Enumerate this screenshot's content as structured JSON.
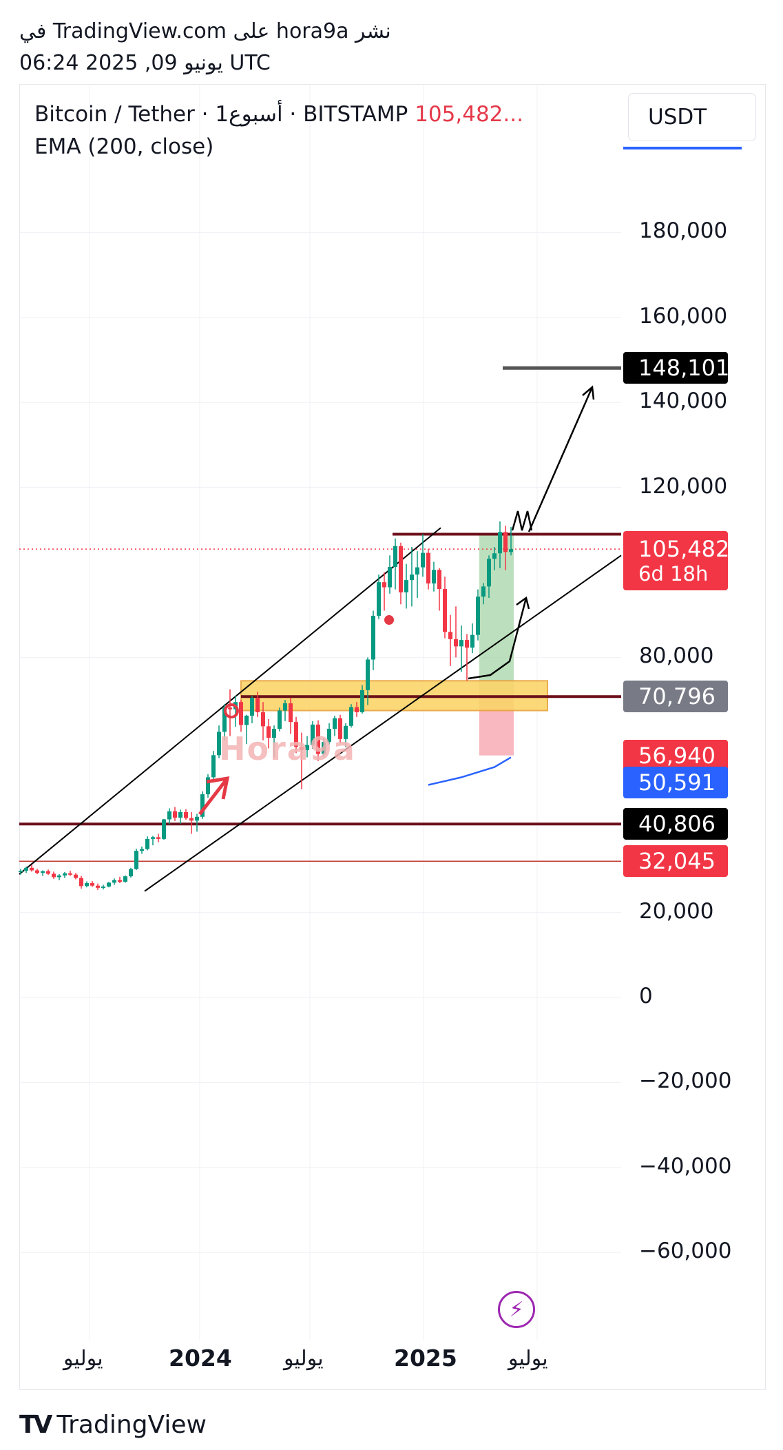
{
  "header": {
    "line1": "في TradingView.com على hora9a نشر",
    "line2": "06:24 2025 ,09 يونيو UTC"
  },
  "legend": {
    "symbol": "Bitcoin / Tether · 1أسبوع · BITSTAMP",
    "price": "105,482...",
    "indicator": "EMA (200, close)"
  },
  "currency_button": "USDT",
  "watermark": "Hora9a",
  "footer": {
    "logo": "TV",
    "brand": "TradingView"
  },
  "colors": {
    "up": "#089981",
    "down": "#f23645",
    "zone": "#fbd46a",
    "green_box": "#a5d6a7",
    "red_box": "#f8a5b0"
  },
  "icons": {
    "flash": "lightning-bolt-icon"
  },
  "chart_data": {
    "type": "candlestick",
    "symbol": "BTCUSDT",
    "y_ticks": [
      180000,
      160000,
      140000,
      120000,
      80000,
      20000,
      0,
      -20000,
      -40000,
      -60000
    ],
    "y_tick_labels": [
      "180,000",
      "160,000",
      "140,000",
      "120,000",
      "80,000",
      "20,000",
      "0",
      "−20,000",
      "−40,000",
      "−60,000"
    ],
    "x_ticks": [
      {
        "label": "يوليو",
        "year": false
      },
      {
        "label": "2024",
        "year": true
      },
      {
        "label": "يوليو",
        "year": false
      },
      {
        "label": "2025",
        "year": true
      },
      {
        "label": "يوليو",
        "year": false
      }
    ],
    "price_tags": [
      {
        "value": 148101,
        "label": "148,101",
        "color": "#000000"
      },
      {
        "value": 105482,
        "label": "105,482",
        "sub": "6d 18h",
        "color": "#f23645"
      },
      {
        "value": 70796,
        "label": "70,796",
        "color": "#787b86"
      },
      {
        "value": 56940,
        "label": "56,940",
        "color": "#f23645"
      },
      {
        "value": 50591,
        "label": "50,591",
        "color": "#2962ff"
      },
      {
        "value": 40806,
        "label": "40,806",
        "color": "#000000"
      },
      {
        "value": 32045,
        "label": "32,045",
        "color": "#f23645"
      }
    ],
    "horizontal_levels": [
      109000,
      70796,
      40806,
      32045
    ],
    "target_level": 148101,
    "candles": [
      [
        29500,
        30200,
        28900,
        29800
      ],
      [
        29800,
        30800,
        29300,
        30500
      ],
      [
        30500,
        31200,
        29600,
        29900
      ],
      [
        29900,
        30300,
        29000,
        29300
      ],
      [
        29300,
        29900,
        28600,
        29700
      ],
      [
        29700,
        30100,
        28800,
        29100
      ],
      [
        29100,
        29600,
        27900,
        28300
      ],
      [
        28300,
        29000,
        27600,
        28700
      ],
      [
        28700,
        29500,
        28100,
        29200
      ],
      [
        29200,
        29800,
        28600,
        28900
      ],
      [
        28900,
        29300,
        27800,
        28100
      ],
      [
        28100,
        28600,
        25600,
        26200
      ],
      [
        26200,
        27300,
        25900,
        26900
      ],
      [
        26900,
        27400,
        26000,
        26300
      ],
      [
        26300,
        26800,
        25300,
        25800
      ],
      [
        25800,
        26500,
        25400,
        26100
      ],
      [
        26100,
        27200,
        25900,
        27000
      ],
      [
        27000,
        28000,
        26500,
        27600
      ],
      [
        27600,
        28400,
        26900,
        27200
      ],
      [
        27200,
        28700,
        27000,
        28500
      ],
      [
        28500,
        30500,
        28200,
        30200
      ],
      [
        30200,
        35000,
        30000,
        34500
      ],
      [
        34500,
        35500,
        33800,
        34900
      ],
      [
        34900,
        37900,
        34600,
        37300
      ],
      [
        37300,
        38000,
        35800,
        37700
      ],
      [
        37700,
        38500,
        36500,
        37300
      ],
      [
        37300,
        42000,
        37100,
        41900
      ],
      [
        41900,
        44500,
        40700,
        43800
      ],
      [
        43800,
        44800,
        41500,
        42300
      ],
      [
        42300,
        44200,
        40800,
        43600
      ],
      [
        43600,
        44300,
        41800,
        42200
      ],
      [
        42200,
        43600,
        38500,
        41600
      ],
      [
        41600,
        43200,
        39000,
        42500
      ],
      [
        42500,
        48500,
        42000,
        47800
      ],
      [
        47800,
        52500,
        47000,
        51800
      ],
      [
        51800,
        58000,
        50600,
        57000
      ],
      [
        57000,
        64000,
        56300,
        62500
      ],
      [
        62500,
        69000,
        60500,
        68200
      ],
      [
        68200,
        72500,
        61500,
        67800
      ],
      [
        67800,
        71000,
        63700,
        69500
      ],
      [
        69500,
        70000,
        62500,
        64100
      ],
      [
        64100,
        66500,
        59600,
        66300
      ],
      [
        66300,
        71000,
        64500,
        70500
      ],
      [
        70500,
        71900,
        66000,
        67100
      ],
      [
        67100,
        69500,
        60500,
        63800
      ],
      [
        63800,
        65500,
        58600,
        61100
      ],
      [
        61100,
        64000,
        56500,
        63200
      ],
      [
        63200,
        68200,
        62600,
        67500
      ],
      [
        67500,
        70000,
        65000,
        69200
      ],
      [
        69200,
        70500,
        62000,
        64800
      ],
      [
        64800,
        66000,
        57500,
        59000
      ],
      [
        59000,
        62300,
        49000,
        58200
      ],
      [
        58200,
        61500,
        56500,
        59400
      ],
      [
        59400,
        65000,
        58500,
        64200
      ],
      [
        64200,
        65200,
        55600,
        57300
      ],
      [
        57300,
        61000,
        56600,
        60100
      ],
      [
        60100,
        64500,
        59500,
        63200
      ],
      [
        63200,
        66300,
        61500,
        65700
      ],
      [
        65700,
        66500,
        59800,
        60800
      ],
      [
        60800,
        64500,
        58900,
        63900
      ],
      [
        63900,
        69000,
        63500,
        68300
      ],
      [
        68300,
        69500,
        66000,
        67100
      ],
      [
        67100,
        73500,
        66800,
        72300
      ],
      [
        72300,
        80000,
        68800,
        79500
      ],
      [
        79500,
        91000,
        77000,
        89800
      ],
      [
        89800,
        99500,
        89000,
        97700
      ],
      [
        97700,
        100000,
        91000,
        96500
      ],
      [
        96500,
        104000,
        95000,
        101300
      ],
      [
        101300,
        108000,
        96000,
        106200
      ],
      [
        106200,
        107000,
        92500,
        95300
      ],
      [
        95300,
        102000,
        91500,
        98200
      ],
      [
        98200,
        106000,
        92000,
        99500
      ],
      [
        99500,
        105000,
        94000,
        101200
      ],
      [
        101200,
        109000,
        99000,
        104600
      ],
      [
        104600,
        105500,
        96000,
        97400
      ],
      [
        97400,
        102500,
        95500,
        100600
      ],
      [
        100600,
        101000,
        91000,
        96100
      ],
      [
        96100,
        99000,
        84500,
        86000
      ],
      [
        86000,
        90000,
        78000,
        84300
      ],
      [
        84300,
        92000,
        80000,
        82600
      ],
      [
        82600,
        87500,
        76600,
        84100
      ],
      [
        84100,
        85500,
        74500,
        82300
      ],
      [
        82300,
        88000,
        81000,
        85300
      ],
      [
        85300,
        96000,
        84000,
        94300
      ],
      [
        94300,
        97500,
        92500,
        96700
      ],
      [
        96700,
        104000,
        94000,
        103200
      ],
      [
        103200,
        106000,
        100500,
        104500
      ],
      [
        104500,
        112000,
        101000,
        109500
      ],
      [
        109500,
        111000,
        100500,
        104800
      ],
      [
        104800,
        110700,
        104000,
        105482
      ]
    ],
    "ema_200": [
      {
        "i": 74,
        "v": 50000
      },
      {
        "i": 80,
        "v": 51800
      },
      {
        "i": 86,
        "v": 54200
      },
      {
        "i": 89,
        "v": 56500
      }
    ]
  }
}
